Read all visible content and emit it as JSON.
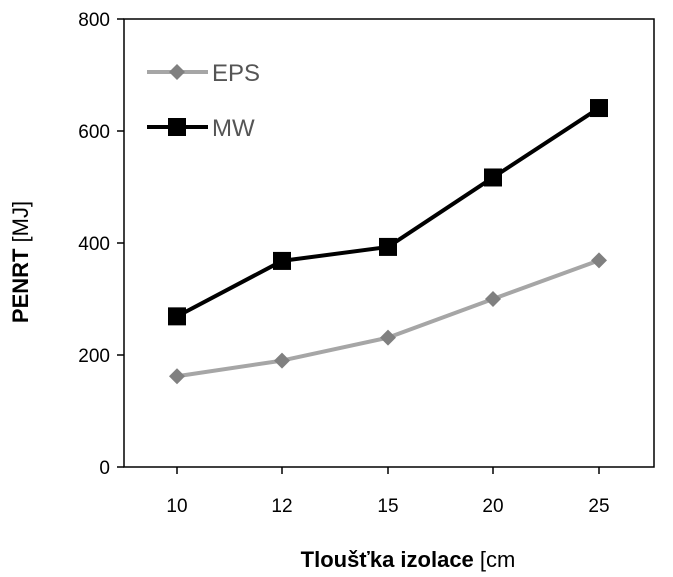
{
  "chart_data": {
    "type": "line",
    "categories": [
      "10",
      "12",
      "15",
      "20",
      "25"
    ],
    "xlabel": {
      "bold": "Tloušťka izolace",
      "regular": " [cm"
    },
    "ylabel": {
      "bold": "PENRT",
      "regular": " [MJ]"
    },
    "ylim": [
      0,
      800
    ],
    "yticks": [
      "0",
      "200",
      "400",
      "600",
      "800"
    ],
    "grid": false,
    "legend_position": "top-left",
    "series": [
      {
        "name": "EPS",
        "values": [
          162,
          190,
          231,
          300,
          369
        ],
        "color": "#a6a6a6",
        "marker": "diamond",
        "marker_color": "#808080"
      },
      {
        "name": "MW",
        "values": [
          269,
          368,
          393,
          517,
          641
        ],
        "color": "#000000",
        "marker": "square",
        "marker_color": "#000000"
      }
    ]
  }
}
